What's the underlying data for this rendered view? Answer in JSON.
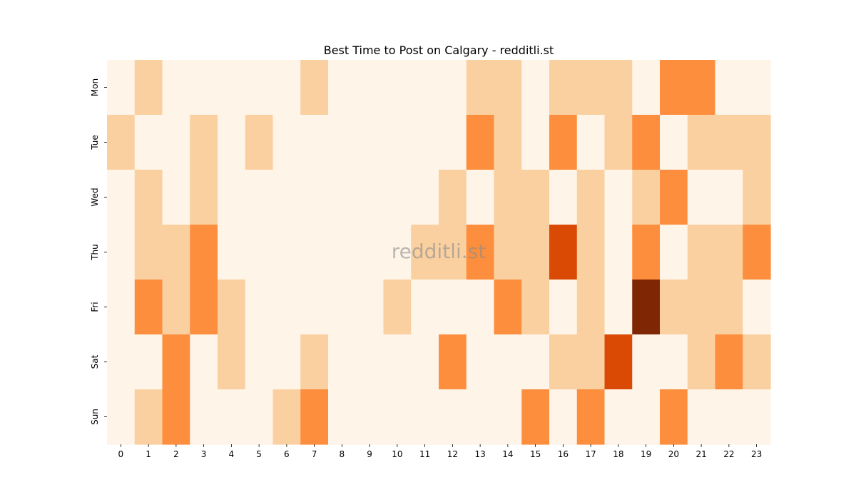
{
  "chart_data": {
    "type": "heatmap",
    "title": "Best Time to Post on Calgary - redditli.st",
    "watermark": "redditli.st",
    "xlabel": "",
    "ylabel": "",
    "x_categories": [
      "0",
      "1",
      "2",
      "3",
      "4",
      "5",
      "6",
      "7",
      "8",
      "9",
      "10",
      "11",
      "12",
      "13",
      "14",
      "15",
      "16",
      "17",
      "18",
      "19",
      "20",
      "21",
      "22",
      "23"
    ],
    "y_categories": [
      "Mon",
      "Tue",
      "Wed",
      "Thu",
      "Fri",
      "Sat",
      "Sun"
    ],
    "values": [
      [
        0,
        1,
        0,
        0,
        0,
        0,
        0,
        1,
        0,
        0,
        0,
        0,
        0,
        1,
        1,
        0,
        1,
        1,
        1,
        0,
        2,
        2,
        0,
        0
      ],
      [
        1,
        0,
        0,
        1,
        0,
        1,
        0,
        0,
        0,
        0,
        0,
        0,
        0,
        2,
        1,
        0,
        2,
        0,
        1,
        2,
        0,
        1,
        1,
        1
      ],
      [
        0,
        1,
        0,
        1,
        0,
        0,
        0,
        0,
        0,
        0,
        0,
        0,
        1,
        0,
        1,
        1,
        0,
        1,
        0,
        1,
        2,
        0,
        0,
        1
      ],
      [
        0,
        1,
        1,
        2,
        0,
        0,
        0,
        0,
        0,
        0,
        0,
        1,
        1,
        2,
        1,
        1,
        3,
        1,
        0,
        2,
        0,
        1,
        1,
        2
      ],
      [
        0,
        2,
        1,
        2,
        1,
        0,
        0,
        0,
        0,
        0,
        1,
        0,
        0,
        0,
        2,
        1,
        0,
        1,
        0,
        4,
        1,
        1,
        1,
        0
      ],
      [
        0,
        0,
        2,
        0,
        1,
        0,
        0,
        1,
        0,
        0,
        0,
        0,
        2,
        0,
        0,
        0,
        1,
        1,
        3,
        0,
        0,
        1,
        2,
        1
      ],
      [
        0,
        1,
        2,
        0,
        0,
        0,
        1,
        2,
        0,
        0,
        0,
        0,
        0,
        0,
        0,
        2,
        0,
        2,
        0,
        0,
        2,
        0,
        0,
        0
      ]
    ],
    "colormap": "Oranges",
    "level_colors": [
      "#fef4e8",
      "#fbd0a0",
      "#fd8e3d",
      "#da4a04",
      "#7f2605"
    ],
    "grid": false,
    "legend": "none"
  }
}
